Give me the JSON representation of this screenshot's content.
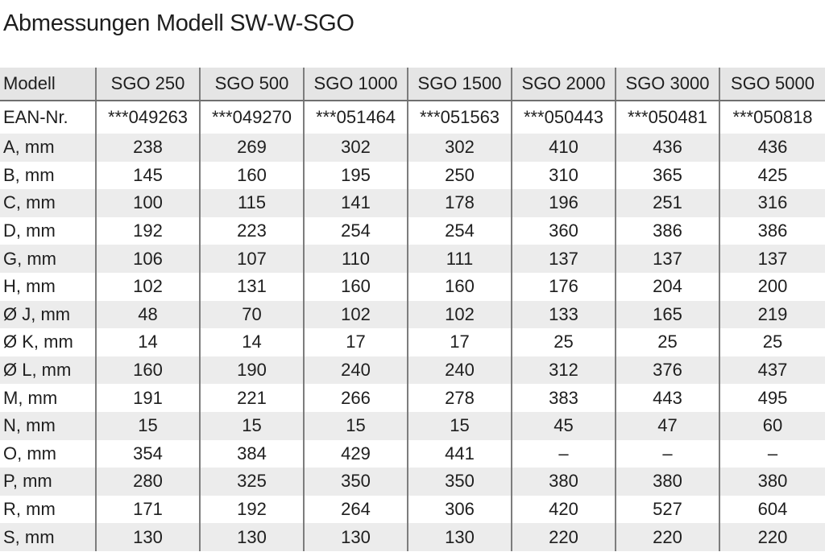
{
  "title": "Abmessungen Modell SW-W-SGO",
  "table": {
    "header": [
      "Modell",
      "SGO 250",
      "SGO 500",
      "SGO 1000",
      "SGO 1500",
      "SGO 2000",
      "SGO 3000",
      "SGO 5000"
    ],
    "rows": [
      [
        "EAN-Nr.",
        "***049263",
        "***049270",
        "***051464",
        "***051563",
        "***050443",
        "***050481",
        "***050818"
      ],
      [
        "A, mm",
        "238",
        "269",
        "302",
        "302",
        "410",
        "436",
        "436"
      ],
      [
        "B, mm",
        "145",
        "160",
        "195",
        "250",
        "310",
        "365",
        "425"
      ],
      [
        "C, mm",
        "100",
        "115",
        "141",
        "178",
        "196",
        "251",
        "316"
      ],
      [
        "D, mm",
        "192",
        "223",
        "254",
        "254",
        "360",
        "386",
        "386"
      ],
      [
        "G, mm",
        "106",
        "107",
        "110",
        "111",
        "137",
        "137",
        "137"
      ],
      [
        "H, mm",
        "102",
        "131",
        "160",
        "160",
        "176",
        "204",
        "200"
      ],
      [
        "Ø J, mm",
        "48",
        "70",
        "102",
        "102",
        "133",
        "165",
        "219"
      ],
      [
        "Ø K, mm",
        "14",
        "14",
        "17",
        "17",
        "25",
        "25",
        "25"
      ],
      [
        "Ø L, mm",
        "160",
        "190",
        "240",
        "240",
        "312",
        "376",
        "437"
      ],
      [
        "M, mm",
        "191",
        "221",
        "266",
        "278",
        "383",
        "443",
        "495"
      ],
      [
        "N, mm",
        "15",
        "15",
        "15",
        "15",
        "45",
        "47",
        "60"
      ],
      [
        "O, mm",
        "354",
        "384",
        "429",
        "441",
        "–",
        "–",
        "–"
      ],
      [
        "P, mm",
        "280",
        "325",
        "350",
        "350",
        "380",
        "380",
        "380"
      ],
      [
        "R, mm",
        "171",
        "192",
        "264",
        "306",
        "420",
        "527",
        "604"
      ],
      [
        "S, mm",
        "130",
        "130",
        "130",
        "130",
        "220",
        "220",
        "220"
      ]
    ]
  }
}
